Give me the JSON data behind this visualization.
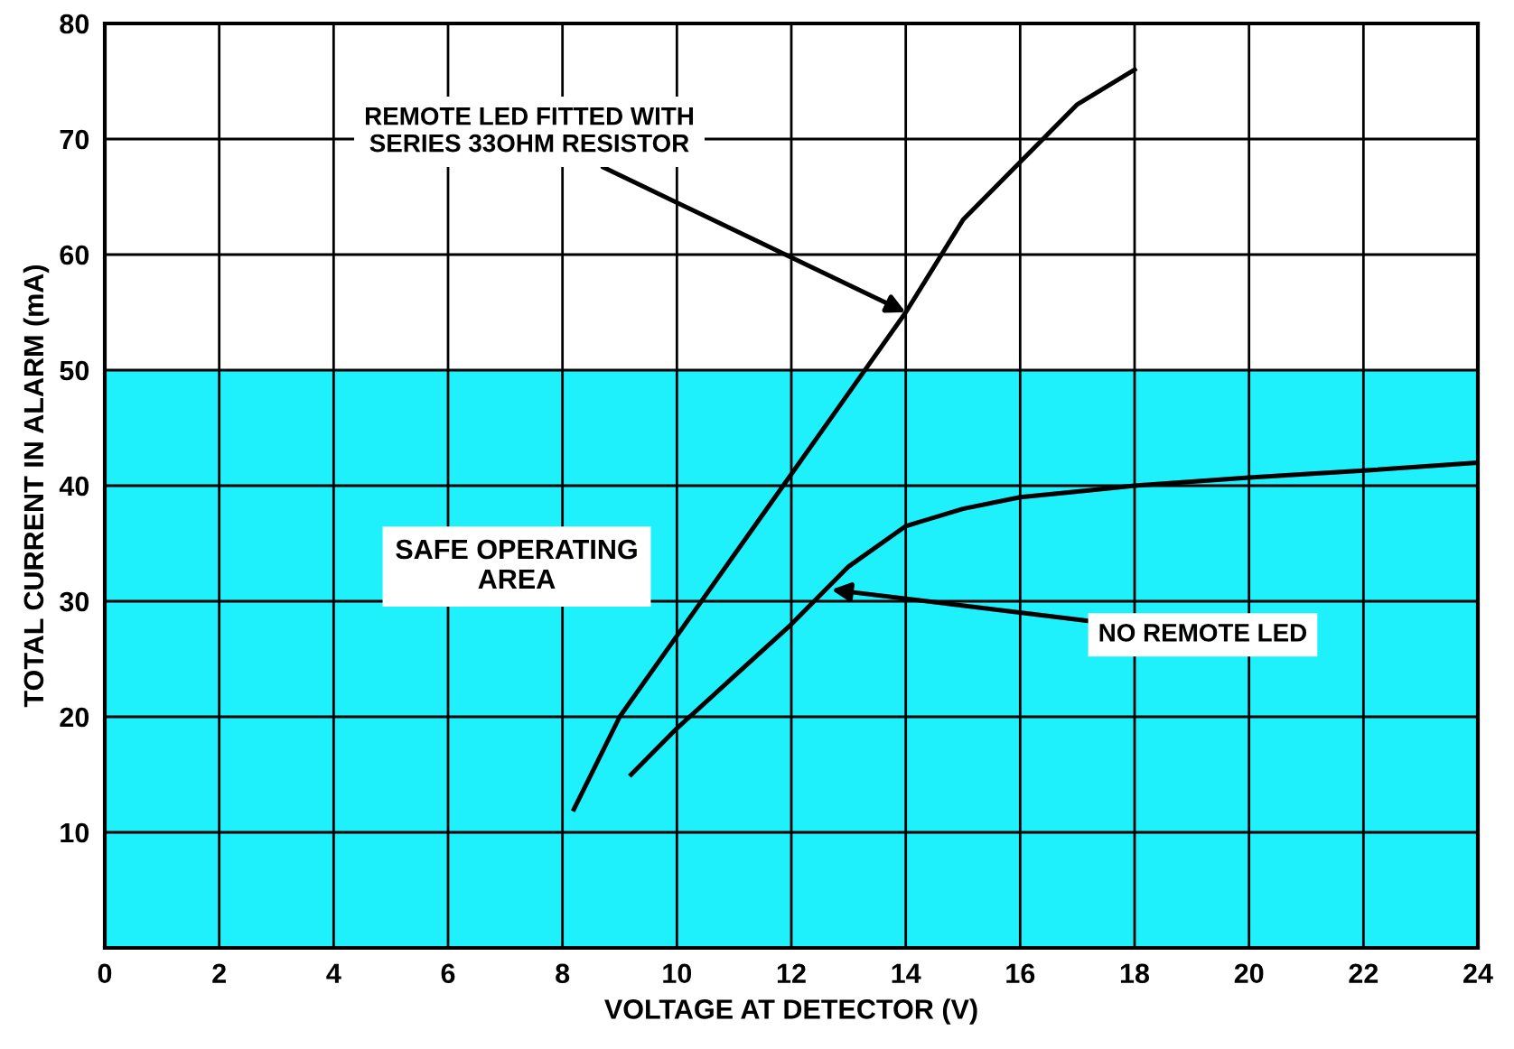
{
  "chart_data": {
    "type": "line",
    "xlabel": "VOLTAGE AT DETECTOR (V)",
    "ylabel": "TOTAL CURRENT IN ALARM (mA)",
    "xlim": [
      0,
      24
    ],
    "xticks": [
      0,
      2,
      4,
      6,
      8,
      10,
      12,
      14,
      16,
      18,
      20,
      22,
      24
    ],
    "ylim": [
      0,
      80
    ],
    "yticks": [
      {
        "value": 0,
        "label": null
      },
      10,
      20,
      30,
      40,
      50,
      60,
      70,
      80
    ],
    "grid": true,
    "marker": "none",
    "line_style": "solid",
    "bands": [
      {
        "axis": "y",
        "from": 0,
        "to": 50,
        "label": "SAFE OPERATING\nAREA",
        "color": "#1ef0fc"
      }
    ],
    "series": [
      {
        "color": "#000000",
        "x": [
          8.2,
          9,
          10,
          11,
          12,
          13,
          14,
          15,
          16,
          17,
          18
        ],
        "values": [
          12,
          20,
          27,
          34,
          41,
          48,
          55,
          63,
          68,
          73,
          76
        ]
      },
      {
        "color": "#000000",
        "x": [
          9.2,
          10,
          11,
          12,
          13,
          14,
          15,
          16,
          17,
          18,
          20,
          22,
          24
        ],
        "values": [
          15,
          19,
          23.5,
          28,
          33,
          36.5,
          38,
          39,
          39.5,
          40,
          40.7,
          41.3,
          42
        ]
      }
    ],
    "annotations": [
      {
        "text": "REMOTE LED FITTED WITH\nSERIES 33OHM RESISTOR",
        "x": 14,
        "y": 55
      },
      {
        "text": "NO REMOTE LED",
        "x": 12.7,
        "y": 31
      }
    ]
  }
}
